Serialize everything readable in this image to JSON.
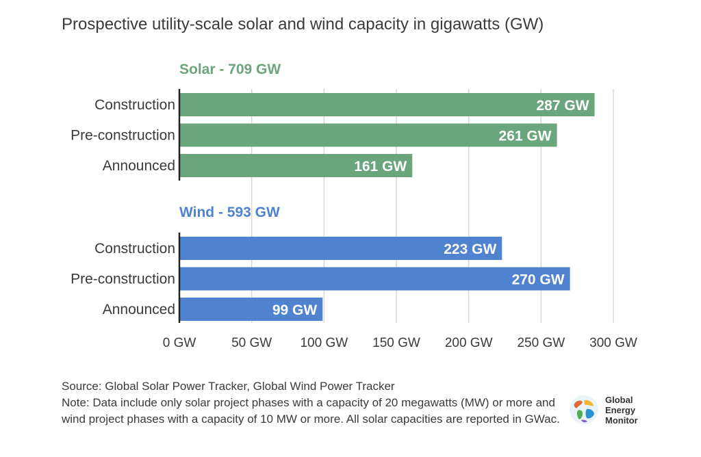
{
  "title": "Prospective utility-scale solar and wind capacity in gigawatts (GW)",
  "chart_data": {
    "type": "bar",
    "orientation": "horizontal",
    "title": "Prospective utility-scale solar and wind capacity in gigawatts (GW)",
    "xlim": [
      0,
      300
    ],
    "x_ticks": [
      "0 GW",
      "50 GW",
      "100 GW",
      "150 GW",
      "200 GW",
      "250 GW",
      "300 GW"
    ],
    "x_tick_values": [
      0,
      50,
      100,
      150,
      200,
      250,
      300
    ],
    "grid": true,
    "groups": [
      {
        "name": "Solar - 709 GW",
        "color": "#6aa57c",
        "categories": [
          "Construction",
          "Pre-construction",
          "Announced"
        ],
        "values": [
          287,
          261,
          161
        ],
        "labels": [
          "287 GW",
          "261 GW",
          "161 GW"
        ]
      },
      {
        "name": "Wind - 593 GW",
        "color": "#4f82cf",
        "categories": [
          "Construction",
          "Pre-construction",
          "Announced"
        ],
        "values": [
          223,
          270,
          99
        ],
        "labels": [
          "223 GW",
          "270 GW",
          "99 GW"
        ]
      }
    ]
  },
  "footer": {
    "source": "Source: Global Solar Power Tracker, Global Wind Power Tracker",
    "note": "Note: Data include only solar project phases with a capacity of 20 megawatts (MW) or more and wind project phases with a capacity of 10 MW or more. All solar capacities are reported in GWac."
  },
  "logo": {
    "icon": "globe-icon",
    "lines": [
      "Global",
      "Energy",
      "Monitor"
    ]
  }
}
